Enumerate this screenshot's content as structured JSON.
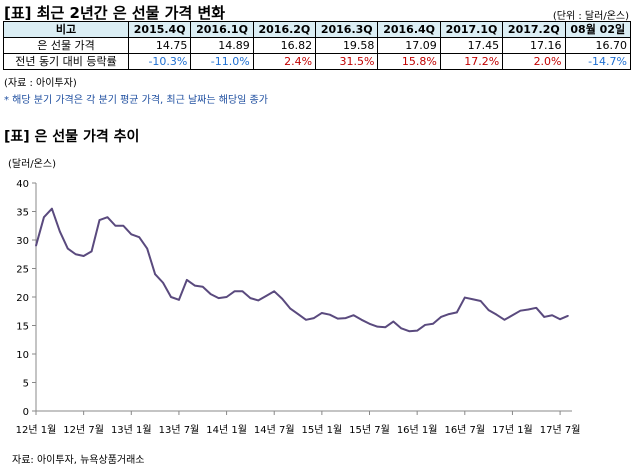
{
  "table": {
    "title": "[표] 최근 2년간 은 선물 가격 변화",
    "unit": "(단위 : 달러/온스)",
    "header": [
      "비고",
      "2015.4Q",
      "2016.1Q",
      "2016.2Q",
      "2016.3Q",
      "2016.4Q",
      "2017.1Q",
      "2017.2Q",
      "08월 02일"
    ],
    "rows": [
      {
        "label": "은 선물 가격",
        "values": [
          "14.75",
          "14.89",
          "16.82",
          "19.58",
          "17.09",
          "17.45",
          "17.16",
          "16.70"
        ]
      },
      {
        "label": "전년 동기 대비 등락률",
        "values": [
          "-10.3%",
          "-11.0%",
          "2.4%",
          "31.5%",
          "15.8%",
          "17.2%",
          "2.0%",
          "-14.7%"
        ]
      }
    ],
    "source": "(자료 : 아이투자)",
    "footnote": "* 해당 분기 가격은 각 분기 평균 가격, 최근 날짜는 해당일 종가",
    "colors": {
      "negative": "#1f6fd1",
      "positive": "#c00000",
      "header_bg": "#dbeef4"
    }
  },
  "chart_data": {
    "type": "line",
    "title": "[표] 은 선물 가격 추이",
    "ylabel": "(달러/온스)",
    "ylim": [
      0,
      40
    ],
    "yticks": [
      0,
      5,
      10,
      15,
      20,
      25,
      30,
      35,
      40
    ],
    "xlim": [
      "2012-01",
      "2017-08"
    ],
    "xtick_labels": [
      "12년 1월",
      "12년 7월",
      "13년 1월",
      "13년 7월",
      "14년 1월",
      "14년 7월",
      "15년 1월",
      "15년 7월",
      "16년 1월",
      "16년 7월",
      "17년 1월",
      "17년 7월"
    ],
    "grid": false,
    "line_color": "#5a4a7e",
    "source": "자료: 아이투자, 뉴욕상품거래소",
    "series": [
      {
        "x": [
          "2012-01",
          "2012-02",
          "2012-03",
          "2012-04",
          "2012-05",
          "2012-06",
          "2012-07",
          "2012-08",
          "2012-09",
          "2012-10",
          "2012-11",
          "2012-12",
          "2013-01",
          "2013-02",
          "2013-03",
          "2013-04",
          "2013-05",
          "2013-06",
          "2013-07",
          "2013-08",
          "2013-09",
          "2013-10",
          "2013-11",
          "2013-12",
          "2014-01",
          "2014-02",
          "2014-03",
          "2014-04",
          "2014-05",
          "2014-06",
          "2014-07",
          "2014-08",
          "2014-09",
          "2014-10",
          "2014-11",
          "2014-12",
          "2015-01",
          "2015-02",
          "2015-03",
          "2015-04",
          "2015-05",
          "2015-06",
          "2015-07",
          "2015-08",
          "2015-09",
          "2015-10",
          "2015-11",
          "2015-12",
          "2016-01",
          "2016-02",
          "2016-03",
          "2016-04",
          "2016-05",
          "2016-06",
          "2016-07",
          "2016-08",
          "2016-09",
          "2016-10",
          "2016-11",
          "2016-12",
          "2017-01",
          "2017-02",
          "2017-03",
          "2017-04",
          "2017-05",
          "2017-06",
          "2017-07",
          "2017-08"
        ],
        "y": [
          29,
          34,
          35.5,
          31.5,
          28.5,
          27.5,
          27.2,
          28,
          33.5,
          34,
          32.5,
          32.5,
          31,
          30.5,
          28.5,
          24,
          22.5,
          20,
          19.5,
          23,
          22,
          21.8,
          20.5,
          19.8,
          20,
          21,
          21,
          19.8,
          19.4,
          20.2,
          21,
          19.7,
          18,
          17,
          16,
          16.3,
          17.2,
          16.9,
          16.2,
          16.3,
          16.8,
          16,
          15.3,
          14.8,
          14.7,
          15.7,
          14.5,
          14,
          14.1,
          15.1,
          15.3,
          16.5,
          17,
          17.3,
          19.9,
          19.6,
          19.3,
          17.7,
          16.9,
          16,
          16.8,
          17.6,
          17.8,
          18.1,
          16.5,
          16.8,
          16.1,
          16.7
        ]
      }
    ]
  }
}
